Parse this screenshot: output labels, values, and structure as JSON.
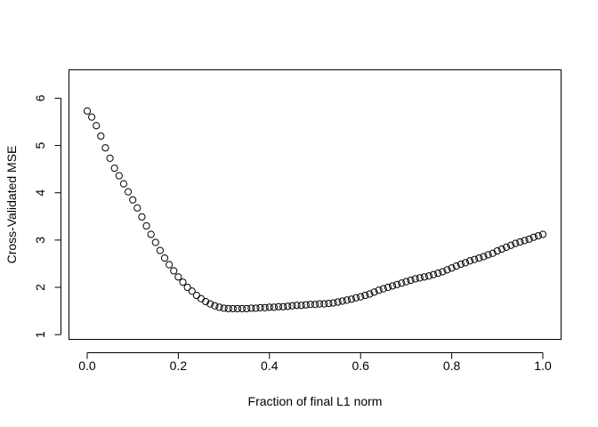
{
  "chart_data": {
    "type": "scatter",
    "title": "",
    "xlabel": "Fraction of final L1 norm",
    "ylabel": "Cross-Validated MSE",
    "xlim": [
      -0.04,
      1.04
    ],
    "ylim": [
      0.9,
      6.6
    ],
    "x_ticks": [
      0.0,
      0.2,
      0.4,
      0.6,
      0.8,
      1.0
    ],
    "x_tick_labels": [
      "0.0",
      "0.2",
      "0.4",
      "0.6",
      "0.8",
      "1.0"
    ],
    "y_ticks": [
      1,
      2,
      3,
      4,
      5,
      6
    ],
    "y_tick_labels": [
      "1",
      "2",
      "3",
      "4",
      "5",
      "6"
    ],
    "grid": false,
    "marker": "open-circle",
    "series": [
      {
        "x": [
          0.0,
          0.01,
          0.02,
          0.03,
          0.04,
          0.05,
          0.06,
          0.07,
          0.08,
          0.09,
          0.1,
          0.11,
          0.12,
          0.13,
          0.14,
          0.15,
          0.16,
          0.17,
          0.18,
          0.19,
          0.2,
          0.21,
          0.22,
          0.23,
          0.24,
          0.25,
          0.26,
          0.27,
          0.28,
          0.29,
          0.3,
          0.31,
          0.32,
          0.33,
          0.34,
          0.35,
          0.36,
          0.37,
          0.38,
          0.39,
          0.4,
          0.41,
          0.42,
          0.43,
          0.44,
          0.45,
          0.46,
          0.47,
          0.48,
          0.49,
          0.5,
          0.51,
          0.52,
          0.53,
          0.54,
          0.55,
          0.56,
          0.57,
          0.58,
          0.59,
          0.6,
          0.61,
          0.62,
          0.63,
          0.64,
          0.65,
          0.66,
          0.67,
          0.68,
          0.69,
          0.7,
          0.71,
          0.72,
          0.73,
          0.74,
          0.75,
          0.76,
          0.77,
          0.78,
          0.79,
          0.8,
          0.81,
          0.82,
          0.83,
          0.84,
          0.85,
          0.86,
          0.87,
          0.88,
          0.89,
          0.9,
          0.91,
          0.92,
          0.93,
          0.94,
          0.95,
          0.96,
          0.97,
          0.98,
          0.99,
          1.0
        ],
        "y": [
          5.73,
          5.6,
          5.42,
          5.2,
          4.95,
          4.73,
          4.52,
          4.36,
          4.19,
          4.02,
          3.85,
          3.68,
          3.49,
          3.3,
          3.12,
          2.95,
          2.78,
          2.62,
          2.48,
          2.35,
          2.22,
          2.11,
          2.0,
          1.92,
          1.83,
          1.76,
          1.7,
          1.65,
          1.61,
          1.58,
          1.56,
          1.55,
          1.55,
          1.55,
          1.55,
          1.55,
          1.56,
          1.56,
          1.57,
          1.57,
          1.58,
          1.58,
          1.59,
          1.59,
          1.6,
          1.61,
          1.62,
          1.62,
          1.63,
          1.64,
          1.64,
          1.65,
          1.65,
          1.66,
          1.67,
          1.69,
          1.71,
          1.73,
          1.75,
          1.78,
          1.8,
          1.83,
          1.86,
          1.9,
          1.94,
          1.97,
          2.0,
          2.03,
          2.06,
          2.09,
          2.12,
          2.15,
          2.18,
          2.2,
          2.22,
          2.24,
          2.27,
          2.3,
          2.33,
          2.37,
          2.41,
          2.45,
          2.49,
          2.52,
          2.56,
          2.59,
          2.62,
          2.65,
          2.69,
          2.72,
          2.77,
          2.81,
          2.85,
          2.89,
          2.93,
          2.96,
          2.99,
          3.02,
          3.06,
          3.09,
          3.12
        ]
      }
    ]
  }
}
